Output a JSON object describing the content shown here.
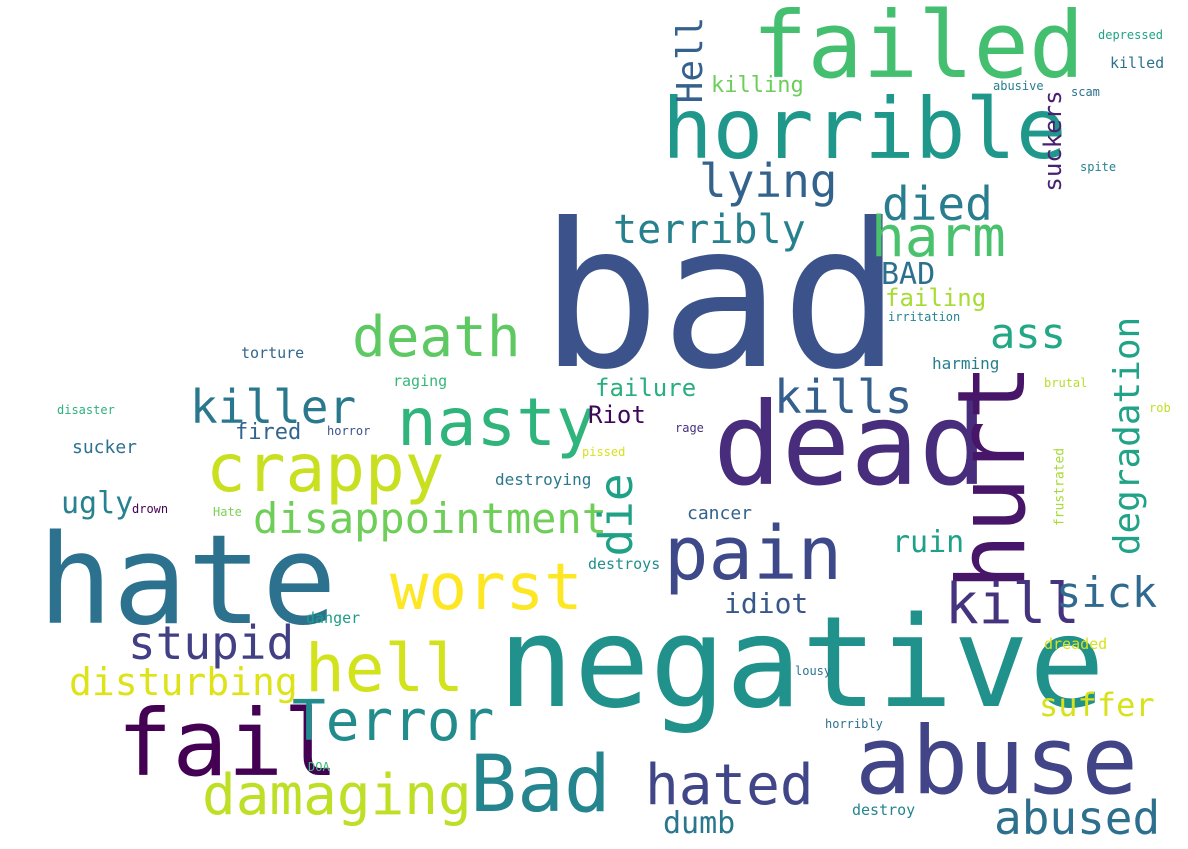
{
  "words": [
    {
      "id": "bad",
      "text": "bad",
      "color": "#3b528b"
    },
    {
      "id": "negative",
      "text": "negative",
      "color": "#21918c"
    },
    {
      "id": "dead",
      "text": "dead",
      "color": "#472d7b"
    },
    {
      "id": "hate",
      "text": "hate",
      "color": "#2c728e"
    },
    {
      "id": "failed",
      "text": "failed",
      "color": "#44bf70"
    },
    {
      "id": "horrible",
      "text": "horrible",
      "color": "#1f988b"
    },
    {
      "id": "fail",
      "text": "fail",
      "color": "#440154"
    },
    {
      "id": "abuse",
      "text": "abuse",
      "color": "#414487"
    },
    {
      "id": "pain",
      "text": "pain",
      "color": "#3e4989"
    },
    {
      "id": "hurt",
      "text": "hurt",
      "color": "#481668"
    },
    {
      "id": "Bad",
      "text": "Bad",
      "color": "#25858e"
    },
    {
      "id": "nasty",
      "text": "nasty",
      "color": "#2fb47c"
    },
    {
      "id": "crappy",
      "text": "crappy",
      "color": "#c8e020"
    },
    {
      "id": "death",
      "text": "death",
      "color": "#5ec962"
    },
    {
      "id": "worst",
      "text": "worst",
      "color": "#fde725"
    },
    {
      "id": "hell",
      "text": "hell",
      "color": "#d2e21b"
    },
    {
      "id": "Terror",
      "text": "Terror",
      "color": "#228c8d"
    },
    {
      "id": "damaging",
      "text": "damaging",
      "color": "#bddf26"
    },
    {
      "id": "hated",
      "text": "hated",
      "color": "#404688"
    },
    {
      "id": "harm",
      "text": "harm",
      "color": "#4ac16d"
    },
    {
      "id": "kill",
      "text": "kill",
      "color": "#46337e"
    },
    {
      "id": "disappointment",
      "text": "disappointment",
      "color": "#6ece58"
    },
    {
      "id": "killer",
      "text": "killer",
      "color": "#2a788e"
    },
    {
      "id": "stupid",
      "text": "stupid",
      "color": "#423f85"
    },
    {
      "id": "lying",
      "text": "lying",
      "color": "#33638d"
    },
    {
      "id": "died",
      "text": "died",
      "color": "#287d8e"
    },
    {
      "id": "kills",
      "text": "kills",
      "color": "#355f8d"
    },
    {
      "id": "abused",
      "text": "abused",
      "color": "#2d708e"
    },
    {
      "id": "terribly",
      "text": "terribly",
      "color": "#27808e"
    },
    {
      "id": "disturbing",
      "text": "disturbing",
      "color": "#dde318"
    },
    {
      "id": "ass",
      "text": "ass",
      "color": "#22a884"
    },
    {
      "id": "sick",
      "text": "sick",
      "color": "#306a8e"
    },
    {
      "id": "die",
      "text": "die",
      "color": "#1fa187"
    },
    {
      "id": "degradation",
      "text": "degradation",
      "color": "#20a386"
    },
    {
      "id": "Hell",
      "text": "Hell",
      "color": "#34618d"
    },
    {
      "id": "suffer",
      "text": "suffer",
      "color": "#d8e219"
    },
    {
      "id": "dumb",
      "text": "dumb",
      "color": "#2a768e"
    },
    {
      "id": "BAD",
      "text": "BAD",
      "color": "#2d708e"
    },
    {
      "id": "ugly",
      "text": "ugly",
      "color": "#26828e"
    },
    {
      "id": "ruin",
      "text": "ruin",
      "color": "#1fa088"
    },
    {
      "id": "idiot",
      "text": "idiot",
      "color": "#38588c"
    },
    {
      "id": "failing",
      "text": "failing",
      "color": "#a8db34"
    },
    {
      "id": "failure",
      "text": "failure",
      "color": "#29af7f"
    },
    {
      "id": "Riot",
      "text": "Riot",
      "color": "#3e075a"
    },
    {
      "id": "suckers",
      "text": "suckers",
      "color": "#482173"
    },
    {
      "id": "fired",
      "text": "fired",
      "color": "#32648e"
    },
    {
      "id": "killing",
      "text": "killing",
      "color": "#6ccd5a"
    },
    {
      "id": "sucker",
      "text": "sucker",
      "color": "#2c728e"
    },
    {
      "id": "cancer",
      "text": "cancer",
      "color": "#33638d"
    },
    {
      "id": "destroying",
      "text": "destroying",
      "color": "#2a788e"
    },
    {
      "id": "torture",
      "text": "torture",
      "color": "#31668e"
    },
    {
      "id": "harming",
      "text": "harming",
      "color": "#277f8e"
    },
    {
      "id": "raging",
      "text": "raging",
      "color": "#35b779"
    },
    {
      "id": "killed",
      "text": "killed",
      "color": "#2c728e"
    },
    {
      "id": "destroys",
      "text": "destroys",
      "color": "#218f8d"
    },
    {
      "id": "danger",
      "text": "danger",
      "color": "#1e9c89"
    },
    {
      "id": "destroy",
      "text": "destroy",
      "color": "#25858e"
    },
    {
      "id": "dreaded",
      "text": "dreaded",
      "color": "#d8e219"
    },
    {
      "id": "frustrated",
      "text": "frustrated",
      "color": "#a5db36"
    },
    {
      "id": "depressed",
      "text": "depressed",
      "color": "#20a386"
    },
    {
      "id": "abusive",
      "text": "abusive",
      "color": "#287d8e"
    },
    {
      "id": "scam",
      "text": "scam",
      "color": "#2d708e"
    },
    {
      "id": "spite",
      "text": "spite",
      "color": "#26828e"
    },
    {
      "id": "irritation",
      "text": "irritation",
      "color": "#25858e"
    },
    {
      "id": "brutal",
      "text": "brutal",
      "color": "#b5de2b"
    },
    {
      "id": "rob",
      "text": "rob",
      "color": "#bddf26"
    },
    {
      "id": "disaster",
      "text": "disaster",
      "color": "#2db27d"
    },
    {
      "id": "horror",
      "text": "horror",
      "color": "#3b528b"
    },
    {
      "id": "rage",
      "text": "rage",
      "color": "#46307e"
    },
    {
      "id": "pissed",
      "text": "pissed",
      "color": "#d8e219"
    },
    {
      "id": "drown",
      "text": "drown",
      "color": "#440154"
    },
    {
      "id": "Hate",
      "text": "Hate",
      "color": "#7ad151"
    },
    {
      "id": "lousy",
      "text": "lousy",
      "color": "#2a768e"
    },
    {
      "id": "horribly",
      "text": "horribly",
      "color": "#2c728e"
    },
    {
      "id": "DOA",
      "text": "DOA",
      "color": "#3dbc74"
    }
  ]
}
